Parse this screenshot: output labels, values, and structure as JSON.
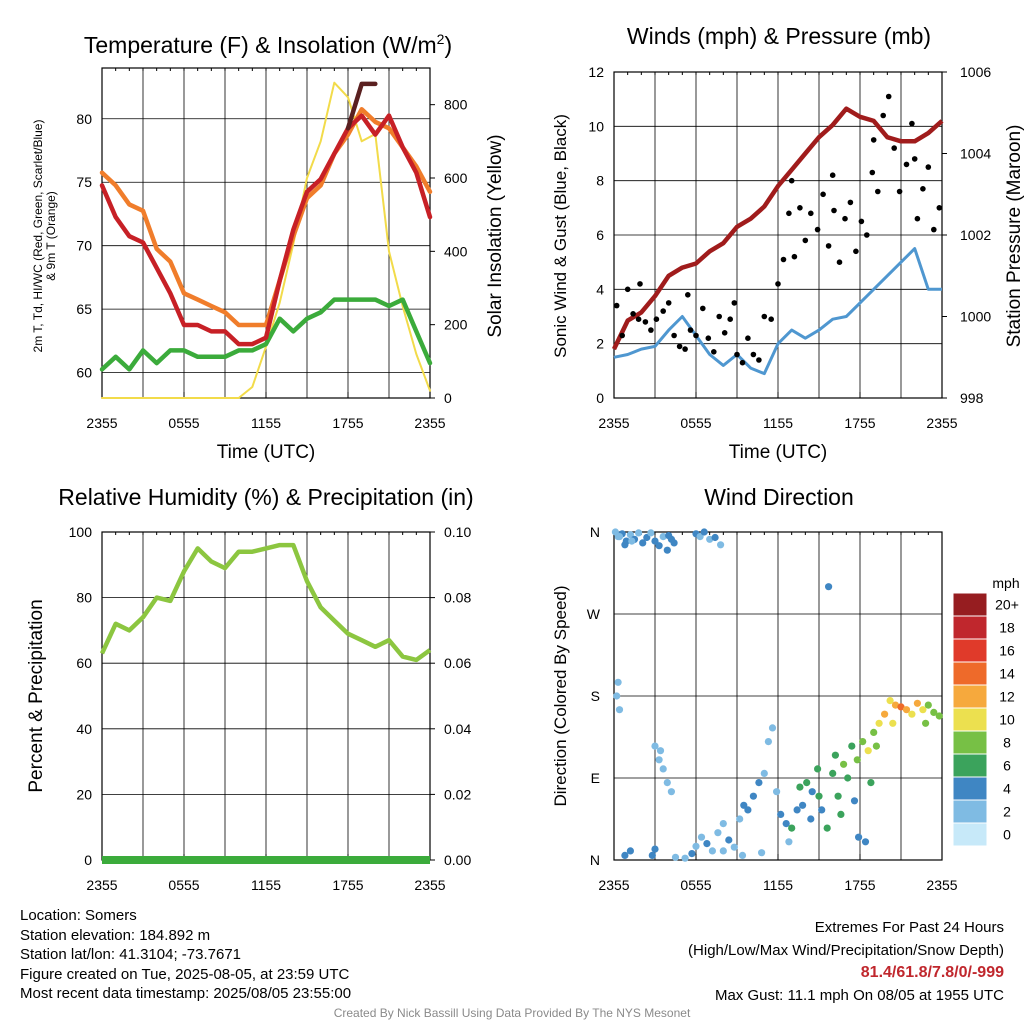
{
  "chart_data": [
    {
      "type": "line",
      "title": "Temperature (F) & Insolation (W/m²)",
      "title_main": "Temperature (F) & Insolation (W/m",
      "title_sup": "2",
      "title_end": ")",
      "xlabel": "Time (UTC)",
      "ylabel_line1": "2m T, Td, HI/WC (Red, Green, Scarlet/Blue)",
      "ylabel_line2": "& 9m T (Orange)",
      "ylabel_right": "Solar Insolation (Yellow)",
      "x_ticks": [
        "2355",
        "0555",
        "1155",
        "1755",
        "2355"
      ],
      "ylim": [
        58,
        84
      ],
      "y_ticks": [
        60,
        65,
        70,
        75,
        80
      ],
      "ylim_right": [
        0,
        900
      ],
      "y_ticks_right": [
        0,
        200,
        400,
        600,
        800
      ],
      "x_hours": [
        0,
        1,
        2,
        3,
        4,
        5,
        6,
        7,
        8,
        9,
        10,
        11,
        12,
        13,
        14,
        15,
        16,
        17,
        18,
        19,
        20,
        21,
        22,
        23,
        24
      ],
      "series": [
        {
          "color": "#5a2020",
          "axis": "left",
          "values": [
            null,
            null,
            null,
            null,
            null,
            null,
            null,
            null,
            null,
            null,
            null,
            null,
            null,
            null,
            null,
            null,
            null,
            null,
            79.5,
            82.5,
            83.0,
            null,
            null,
            null,
            null
          ]
        },
        {
          "color": "#f07d2b",
          "axis": "left",
          "values": [
            76.0,
            74.5,
            73.5,
            72.5,
            70.0,
            68.5,
            66.5,
            65.5,
            65.5,
            64.5,
            64.0,
            63.5,
            64.0,
            67.0,
            71.0,
            73.5,
            75.0,
            77.0,
            79.0,
            80.5,
            80.0,
            79.0,
            78.0,
            76.0,
            74.5
          ]
        },
        {
          "color": "#c72026",
          "axis": "left",
          "values": [
            75.0,
            72.0,
            71.0,
            70.0,
            68.5,
            66.0,
            64.0,
            63.5,
            63.5,
            63.0,
            62.5,
            62.0,
            63.0,
            67.0,
            71.5,
            74.0,
            75.5,
            77.0,
            79.5,
            80.0,
            79.0,
            80.0,
            78.0,
            75.5,
            72.5
          ]
        },
        {
          "color": "#3bab3b",
          "axis": "left",
          "values": [
            60.5,
            61.0,
            60.5,
            61.5,
            61.0,
            61.5,
            62.0,
            61.0,
            61.5,
            61.0,
            62.0,
            61.5,
            62.5,
            64.0,
            63.5,
            64.0,
            65.0,
            65.5,
            66.0,
            65.5,
            66.0,
            65.0,
            66.0,
            63.0,
            61.0
          ]
        },
        {
          "color": "#f2db4a",
          "axis": "right",
          "values": [
            0,
            0,
            0,
            0,
            0,
            0,
            0,
            0,
            0,
            0,
            0,
            30,
            140,
            260,
            420,
            600,
            700,
            860,
            820,
            700,
            720,
            400,
            250,
            120,
            20
          ]
        }
      ]
    },
    {
      "type": "scatter",
      "title": "Winds (mph) & Pressure (mb)",
      "xlabel": "Time (UTC)",
      "ylabel": "Sonic Wind & Gust (Blue, Black)",
      "ylabel_right": "Station Pressure (Maroon)",
      "x_ticks": [
        "2355",
        "0555",
        "1155",
        "1755",
        "2355"
      ],
      "ylim": [
        0,
        12
      ],
      "y_ticks": [
        0,
        2,
        4,
        6,
        8,
        10,
        12
      ],
      "ylim_right": [
        998,
        1006
      ],
      "y_ticks_right": [
        998,
        1000,
        1002,
        1004,
        1006
      ],
      "x_hours": [
        0,
        1,
        2,
        3,
        4,
        5,
        6,
        7,
        8,
        9,
        10,
        11,
        12,
        13,
        14,
        15,
        16,
        17,
        18,
        19,
        20,
        21,
        22,
        23,
        24
      ],
      "pressure": [
        999.2,
        999.9,
        1000.1,
        1000.5,
        1001.0,
        1001.2,
        1001.3,
        1001.6,
        1001.8,
        1002.2,
        1002.4,
        1002.7,
        1003.2,
        1003.6,
        1004.0,
        1004.4,
        1004.7,
        1005.1,
        1004.9,
        1004.8,
        1004.4,
        1004.3,
        1004.3,
        1004.5,
        1004.8
      ],
      "wind": [
        1.5,
        1.6,
        1.8,
        1.9,
        2.5,
        3.0,
        2.3,
        1.6,
        1.2,
        1.6,
        1.1,
        0.9,
        2.0,
        2.5,
        2.2,
        2.5,
        2.9,
        3.0,
        3.5,
        4.0,
        4.5,
        5.0,
        5.5,
        4.0,
        4.0
      ],
      "gust": [
        [
          0.2,
          3.4
        ],
        [
          0.6,
          2.3
        ],
        [
          1.0,
          4.0
        ],
        [
          1.4,
          3.1
        ],
        [
          1.8,
          2.9
        ],
        [
          2.3,
          2.8
        ],
        [
          2.7,
          2.5
        ],
        [
          3.1,
          2.9
        ],
        [
          3.6,
          3.2
        ],
        [
          4.0,
          3.5
        ],
        [
          4.4,
          2.3
        ],
        [
          4.8,
          1.9
        ],
        [
          5.2,
          1.8
        ],
        [
          5.6,
          2.5
        ],
        [
          6.0,
          2.3
        ],
        [
          6.5,
          3.3
        ],
        [
          6.9,
          2.2
        ],
        [
          7.3,
          1.7
        ],
        [
          7.7,
          3.0
        ],
        [
          8.1,
          2.4
        ],
        [
          8.5,
          2.9
        ],
        [
          9.0,
          1.6
        ],
        [
          9.4,
          1.3
        ],
        [
          9.8,
          2.2
        ],
        [
          10.2,
          1.6
        ],
        [
          10.6,
          1.4
        ],
        [
          11.0,
          3.0
        ],
        [
          11.5,
          2.9
        ],
        [
          12.0,
          4.2
        ],
        [
          12.4,
          5.1
        ],
        [
          12.8,
          6.8
        ],
        [
          13.2,
          5.2
        ],
        [
          13.6,
          7.0
        ],
        [
          14.0,
          5.8
        ],
        [
          14.4,
          6.8
        ],
        [
          14.9,
          6.2
        ],
        [
          15.3,
          7.5
        ],
        [
          15.7,
          5.6
        ],
        [
          16.1,
          6.9
        ],
        [
          16.5,
          5.0
        ],
        [
          16.9,
          6.6
        ],
        [
          17.3,
          7.2
        ],
        [
          17.7,
          5.4
        ],
        [
          18.1,
          6.5
        ],
        [
          18.5,
          6.0
        ],
        [
          18.9,
          8.3
        ],
        [
          19.3,
          7.6
        ],
        [
          19.7,
          10.4
        ],
        [
          20.1,
          11.1
        ],
        [
          20.5,
          9.2
        ],
        [
          20.9,
          7.6
        ],
        [
          21.4,
          8.6
        ],
        [
          21.8,
          10.1
        ],
        [
          22.2,
          6.6
        ],
        [
          22.6,
          7.7
        ],
        [
          23.0,
          8.5
        ],
        [
          23.4,
          6.2
        ],
        [
          23.8,
          7.0
        ],
        [
          1.9,
          4.2
        ],
        [
          5.4,
          3.8
        ],
        [
          8.8,
          3.5
        ],
        [
          13.0,
          8.0
        ],
        [
          16.0,
          8.2
        ],
        [
          19.0,
          9.5
        ],
        [
          22.0,
          8.8
        ]
      ]
    },
    {
      "type": "line",
      "title": "Relative Humidity (%) & Precipitation (in)",
      "xlabel": "",
      "ylabel": "Percent & Precipitation",
      "x_ticks": [
        "2355",
        "0555",
        "1155",
        "1755",
        "2355"
      ],
      "ylim": [
        0,
        100
      ],
      "y_ticks": [
        0,
        20,
        40,
        60,
        80,
        100
      ],
      "ylim_right": [
        0.0,
        0.1
      ],
      "y_ticks_right": [
        "0.00",
        "0.02",
        "0.04",
        "0.06",
        "0.08",
        "0.10"
      ],
      "x_hours": [
        0,
        1,
        2,
        3,
        4,
        5,
        6,
        7,
        8,
        9,
        10,
        11,
        12,
        13,
        14,
        15,
        16,
        17,
        18,
        19,
        20,
        21,
        22,
        23,
        24
      ],
      "series": [
        {
          "color": "#8cc640",
          "axis": "left",
          "values": [
            63,
            72,
            70,
            74,
            80,
            79,
            88,
            95,
            91,
            89,
            94,
            94,
            95,
            96,
            96,
            85,
            77,
            73,
            69,
            67,
            65,
            67,
            62,
            61,
            64
          ]
        },
        {
          "color": "#3bab3b",
          "axis": "right",
          "values": [
            0,
            0,
            0,
            0,
            0,
            0,
            0,
            0,
            0,
            0,
            0,
            0,
            0,
            0,
            0,
            0,
            0,
            0,
            0,
            0,
            0,
            0,
            0,
            0,
            0
          ]
        }
      ]
    },
    {
      "type": "scatter",
      "title": "Wind Direction",
      "xlabel": "",
      "ylabel": "Direction (Colored By Speed)",
      "x_ticks": [
        "2355",
        "0555",
        "1155",
        "1755",
        "2355"
      ],
      "y_ticks": [
        "N",
        "E",
        "S",
        "W",
        "N"
      ],
      "y_tick_degrees": [
        0,
        90,
        180,
        270,
        360
      ],
      "legend_unit": "mph",
      "legend": [
        "0",
        "2",
        "4",
        "6",
        "8",
        "10",
        "12",
        "14",
        "16",
        "18",
        "20+"
      ],
      "legend_colors": [
        "#c7e9f9",
        "#7fbbe3",
        "#3f86c3",
        "#3ba35c",
        "#77c045",
        "#ece04f",
        "#f6a93d",
        "#ee6a2a",
        "#e03a2a",
        "#c0272d",
        "#961d20"
      ],
      "points": [
        [
          0.1,
          360,
          1
        ],
        [
          0.3,
          355,
          1
        ],
        [
          0.6,
          358,
          2
        ],
        [
          0.9,
          350,
          2
        ],
        [
          1.2,
          357,
          1
        ],
        [
          1.5,
          352,
          2
        ],
        [
          1.8,
          359,
          1
        ],
        [
          2.1,
          348,
          2
        ],
        [
          2.4,
          354,
          2
        ],
        [
          2.7,
          359,
          1
        ],
        [
          3.0,
          350,
          2
        ],
        [
          3.3,
          345,
          2
        ],
        [
          3.6,
          355,
          1
        ],
        [
          3.9,
          340,
          2
        ],
        [
          4.2,
          352,
          2
        ],
        [
          0.4,
          355,
          1
        ],
        [
          0.8,
          346,
          2
        ],
        [
          1.3,
          350,
          1
        ],
        [
          4.0,
          356,
          2
        ],
        [
          4.4,
          348,
          2
        ],
        [
          6.0,
          358,
          2
        ],
        [
          6.3,
          355,
          1
        ],
        [
          6.6,
          360,
          2
        ],
        [
          7.0,
          352,
          1
        ],
        [
          7.4,
          354,
          2
        ],
        [
          7.8,
          346,
          1
        ],
        [
          0.2,
          180,
          1
        ],
        [
          0.4,
          165,
          1
        ],
        [
          0.3,
          195,
          1
        ],
        [
          15.7,
          300,
          2
        ],
        [
          3.0,
          125,
          1
        ],
        [
          3.3,
          110,
          1
        ],
        [
          3.6,
          100,
          1
        ],
        [
          3.9,
          85,
          1
        ],
        [
          4.2,
          75,
          1
        ],
        [
          3.4,
          120,
          1
        ],
        [
          0.8,
          5,
          2
        ],
        [
          1.2,
          10,
          2
        ],
        [
          2.8,
          5,
          2
        ],
        [
          3.0,
          12,
          2
        ],
        [
          4.5,
          3,
          1
        ],
        [
          5.2,
          2,
          1
        ],
        [
          5.7,
          7,
          2
        ],
        [
          6.0,
          15,
          1
        ],
        [
          6.4,
          25,
          1
        ],
        [
          6.8,
          18,
          2
        ],
        [
          7.2,
          10,
          1
        ],
        [
          7.6,
          30,
          1
        ],
        [
          8.0,
          40,
          1
        ],
        [
          8.4,
          22,
          2
        ],
        [
          8.8,
          14,
          1
        ],
        [
          9.2,
          45,
          1
        ],
        [
          9.5,
          60,
          2
        ],
        [
          9.8,
          55,
          2
        ],
        [
          10.2,
          70,
          2
        ],
        [
          10.6,
          85,
          2
        ],
        [
          11.0,
          95,
          1
        ],
        [
          11.3,
          130,
          1
        ],
        [
          11.6,
          145,
          1
        ],
        [
          11.9,
          75,
          1
        ],
        [
          12.2,
          50,
          2
        ],
        [
          12.6,
          40,
          2
        ],
        [
          13.0,
          35,
          3
        ],
        [
          13.4,
          55,
          2
        ],
        [
          13.8,
          60,
          2
        ],
        [
          14.1,
          85,
          3
        ],
        [
          14.5,
          75,
          2
        ],
        [
          14.9,
          100,
          3
        ],
        [
          15.2,
          55,
          2
        ],
        [
          15.6,
          35,
          3
        ],
        [
          16.0,
          95,
          3
        ],
        [
          16.4,
          70,
          3
        ],
        [
          16.8,
          105,
          4
        ],
        [
          17.1,
          90,
          3
        ],
        [
          17.4,
          125,
          3
        ],
        [
          17.8,
          110,
          4
        ],
        [
          18.2,
          130,
          4
        ],
        [
          18.6,
          120,
          5
        ],
        [
          19.0,
          140,
          4
        ],
        [
          19.4,
          150,
          5
        ],
        [
          19.8,
          160,
          6
        ],
        [
          20.2,
          175,
          5
        ],
        [
          20.6,
          170,
          6
        ],
        [
          21.0,
          168,
          7
        ],
        [
          21.4,
          165,
          6
        ],
        [
          21.8,
          160,
          5
        ],
        [
          22.2,
          172,
          6
        ],
        [
          22.6,
          165,
          5
        ],
        [
          23.0,
          170,
          4
        ],
        [
          23.4,
          162,
          4
        ],
        [
          23.8,
          158,
          4
        ],
        [
          19.2,
          125,
          4
        ],
        [
          20.4,
          150,
          5
        ],
        [
          22.8,
          150,
          4
        ],
        [
          13.6,
          80,
          3
        ],
        [
          15.0,
          70,
          3
        ],
        [
          16.2,
          115,
          3
        ],
        [
          17.6,
          65,
          2
        ],
        [
          18.8,
          85,
          3
        ],
        [
          12.8,
          20,
          1
        ],
        [
          8.0,
          10,
          1
        ],
        [
          9.4,
          5,
          1
        ],
        [
          10.8,
          8,
          1
        ],
        [
          14.4,
          45,
          2
        ],
        [
          16.6,
          50,
          3
        ],
        [
          17.9,
          25,
          2
        ],
        [
          18.4,
          20,
          2
        ]
      ]
    }
  ],
  "footer": {
    "location": "Location: Somers",
    "elevation": "Station elevation: 184.892 m",
    "latlon": "Station lat/lon: 41.3104; -73.7671",
    "created": "Figure created on Tue, 2025-08-05, at 23:59 UTC",
    "recent": "Most recent data timestamp: 2025/08/05 23:55:00",
    "extremes_title": "Extremes For Past 24 Hours",
    "extremes_sub": "(High/Low/Max Wind/Precipitation/Snow Depth)",
    "extremes_values": "81.4/61.8/7.8/0/-999",
    "max_gust": "Max Gust: 11.1 mph On 08/05 at 1955 UTC",
    "credit": "Created By Nick Bassill Using Data Provided By The NYS Mesonet"
  }
}
